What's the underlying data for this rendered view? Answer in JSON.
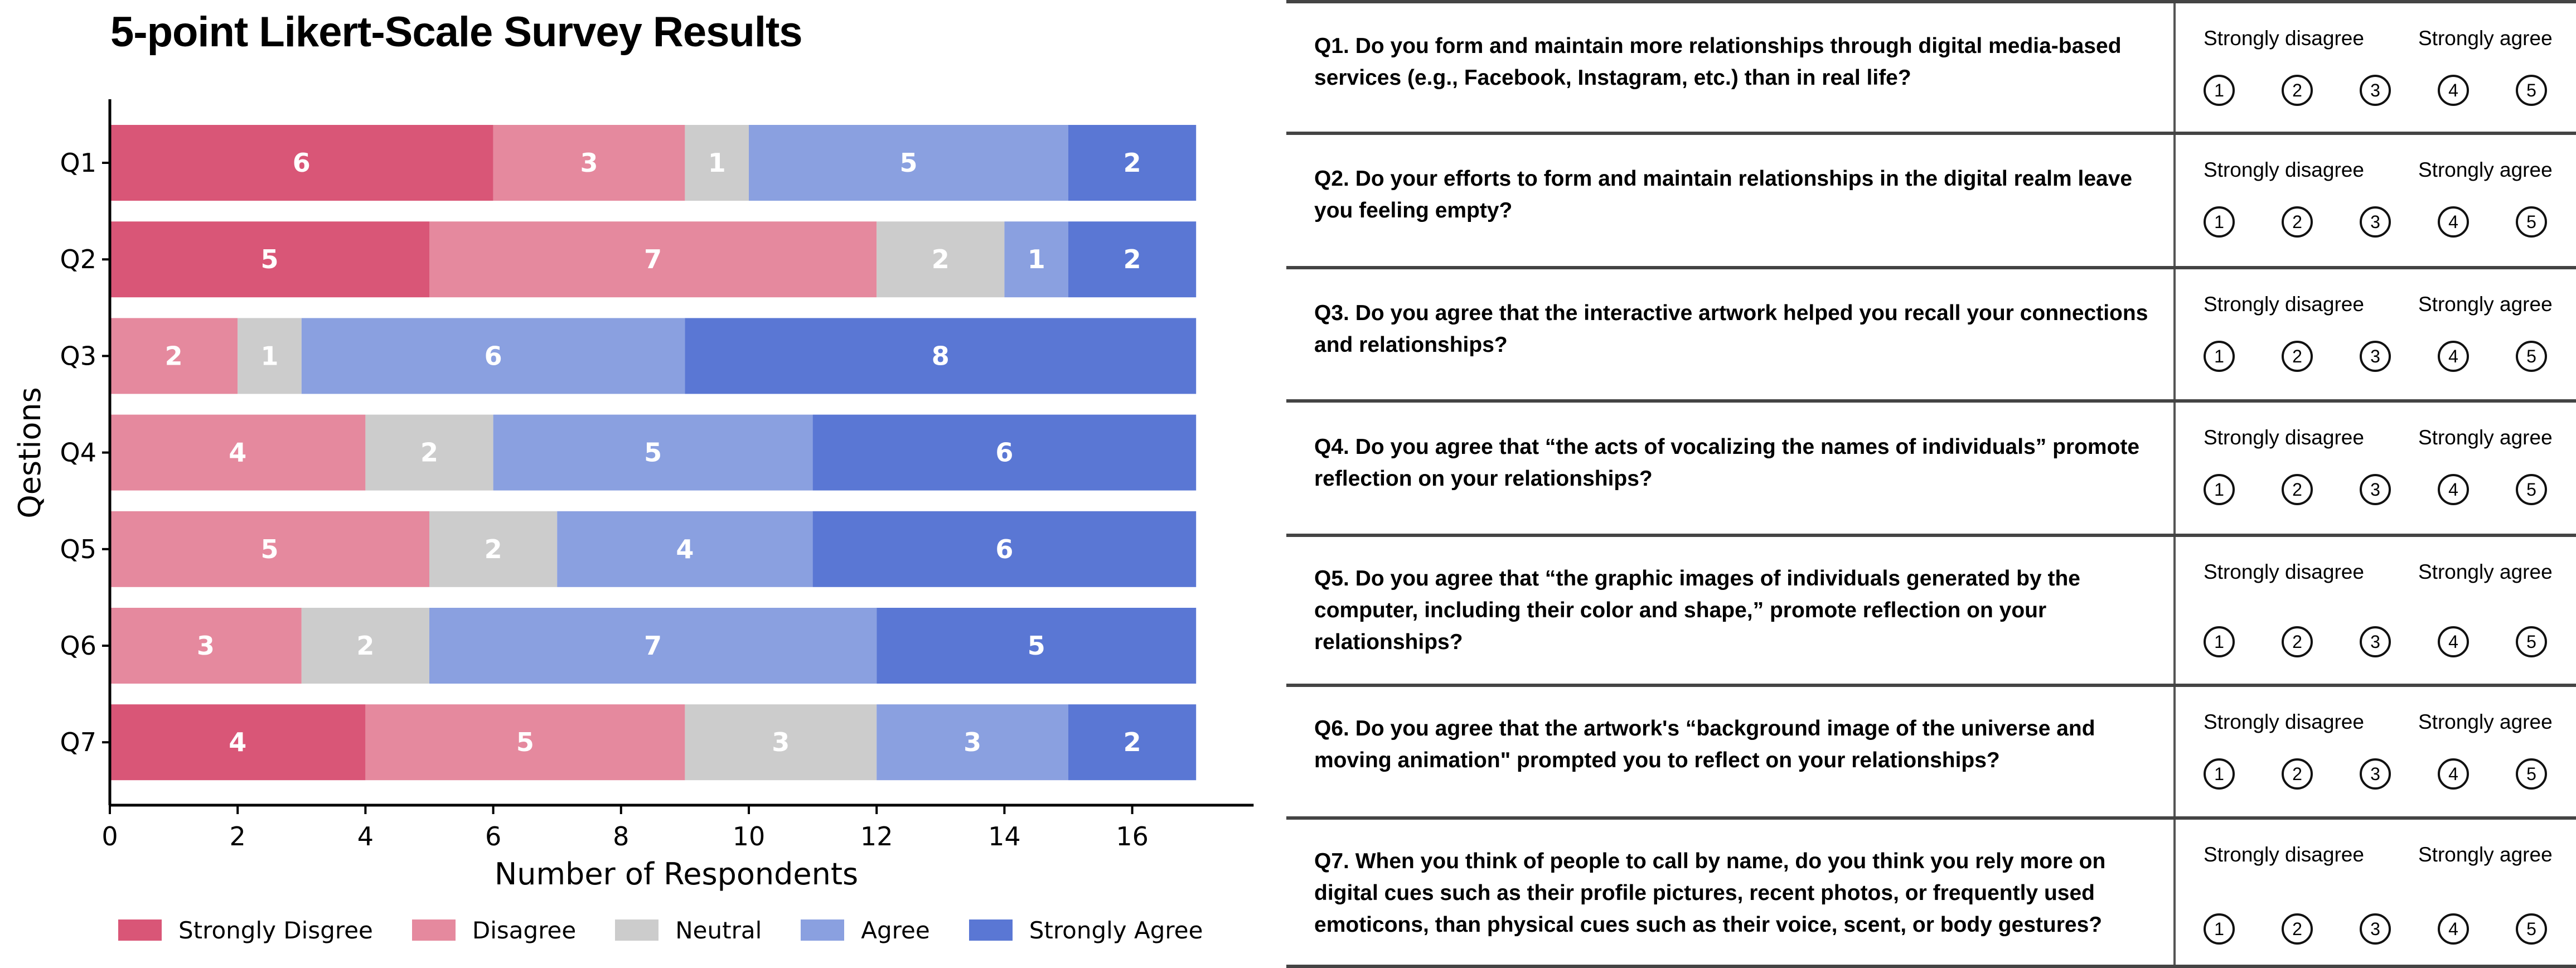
{
  "chart_data": {
    "type": "bar",
    "orientation": "horizontal",
    "stacked": true,
    "title": "5-point Likert-Scale Survey Results",
    "xlabel": "Number of Respondents",
    "ylabel": "Qestions",
    "xlim": [
      0,
      17.9
    ],
    "xticks": [
      0,
      2,
      4,
      6,
      8,
      10,
      12,
      14,
      16
    ],
    "grid": false,
    "legend_position": "bottom",
    "categories": [
      "Q1",
      "Q2",
      "Q3",
      "Q4",
      "Q5",
      "Q6",
      "Q7"
    ],
    "series": [
      {
        "name": "Strongly Disgree",
        "color": "#d95677",
        "values": [
          6,
          5,
          0,
          0,
          0,
          0,
          4
        ]
      },
      {
        "name": "Disagree",
        "color": "#e5899e",
        "values": [
          3,
          7,
          2,
          4,
          5,
          3,
          5
        ]
      },
      {
        "name": "Neutral",
        "color": "#cccccc",
        "values": [
          1,
          2,
          1,
          2,
          2,
          2,
          3
        ]
      },
      {
        "name": "Agree",
        "color": "#8aa0e0",
        "values": [
          5,
          1,
          6,
          5,
          4,
          7,
          3
        ]
      },
      {
        "name": "Strongly Agree",
        "color": "#5a77d4",
        "values": [
          2,
          2,
          8,
          6,
          6,
          5,
          2
        ]
      }
    ]
  },
  "questionnaire": {
    "scale_left_label": "Strongly disagree",
    "scale_right_label": "Strongly agree",
    "options": [
      "1",
      "2",
      "3",
      "4",
      "5"
    ],
    "questions": [
      {
        "id": "Q1",
        "text": "Q1. Do you form and maintain more relationships through digital media-based services (e.g., Facebook, Instagram, etc.) than in real life?"
      },
      {
        "id": "Q2",
        "text": "Q2. Do your efforts to form and maintain relationships in the digital realm leave you feeling empty?"
      },
      {
        "id": "Q3",
        "text": "Q3. Do you agree that the interactive artwork helped you recall your connections and relationships?"
      },
      {
        "id": "Q4",
        "text": "Q4. Do you agree that “the acts of vocalizing the names of individuals” promote reflection on your relationships?"
      },
      {
        "id": "Q5",
        "text": "Q5. Do you agree that “the graphic images of individuals generated by the computer, including their color and shape,” promote reflection on your relationships?"
      },
      {
        "id": "Q6",
        "text": "Q6. Do you agree that the artwork's “background image of the universe and moving animation\" prompted you to reflect on your relationships?"
      },
      {
        "id": "Q7",
        "text": "Q7. When you think of people to call by name, do you think you rely more on digital cues such as their profile pictures, recent photos, or frequently used emoticons, than physical cues such as their voice, scent, or body gestures?"
      }
    ]
  }
}
